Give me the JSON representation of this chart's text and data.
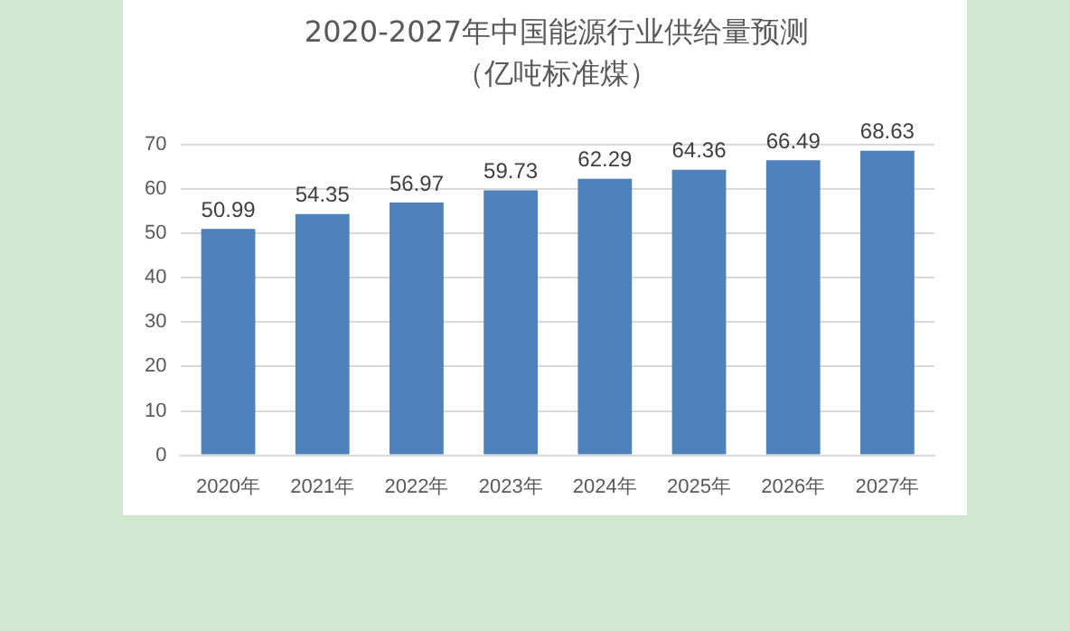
{
  "chart_data": {
    "type": "bar",
    "title": "2020-2027年中国能源行业供给量预测（亿吨标准煤）",
    "categories": [
      "2020年",
      "2021年",
      "2022年",
      "2023年",
      "2024年",
      "2025年",
      "2026年",
      "2027年"
    ],
    "values": [
      50.99,
      54.35,
      56.97,
      59.73,
      62.29,
      64.36,
      66.49,
      68.63
    ],
    "color": "#4f81bd",
    "ylim": [
      0,
      70
    ],
    "yticks": [
      0,
      10,
      20,
      30,
      40,
      50,
      60,
      70
    ],
    "grid": "y",
    "data_labels": true
  }
}
